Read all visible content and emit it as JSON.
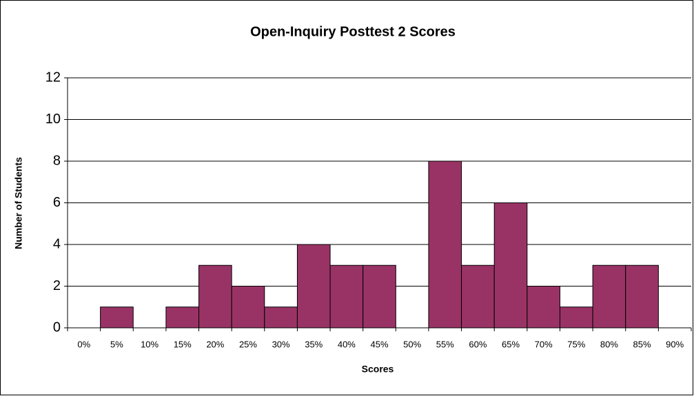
{
  "chart_data": {
    "type": "bar",
    "title": "Open-Inquiry Posttest 2 Scores",
    "x_label": "Scores",
    "y_label": "Number of Students",
    "categories": [
      "0%",
      "5%",
      "10%",
      "15%",
      "20%",
      "25%",
      "30%",
      "35%",
      "40%",
      "45%",
      "50%",
      "55%",
      "60%",
      "65%",
      "70%",
      "75%",
      "80%",
      "85%",
      "90%"
    ],
    "values": [
      0,
      1,
      0,
      1,
      3,
      2,
      1,
      4,
      3,
      3,
      0,
      8,
      3,
      6,
      2,
      1,
      3,
      3,
      0
    ],
    "color": "#993366",
    "ylim": [
      0,
      12
    ],
    "yticks": [
      0,
      2,
      4,
      6,
      8,
      10,
      12
    ],
    "grid": true
  }
}
